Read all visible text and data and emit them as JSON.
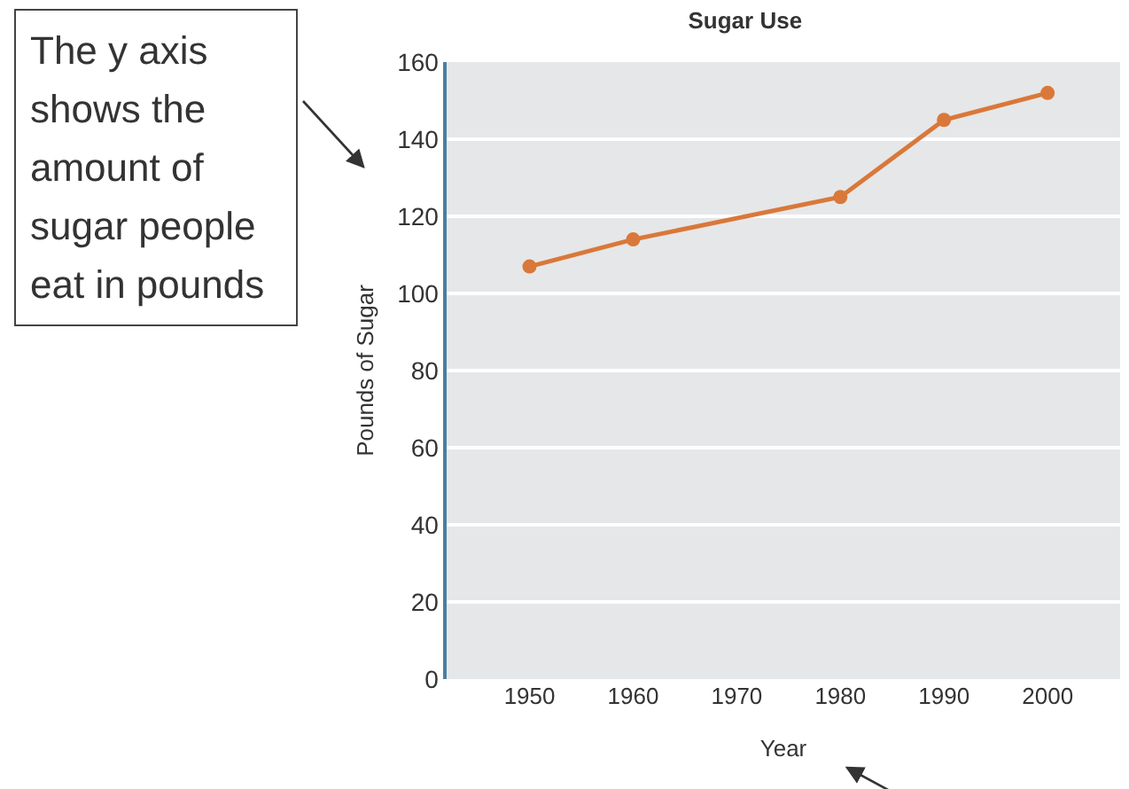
{
  "chart_data": {
    "type": "line",
    "title": "Sugar Use",
    "xlabel": "Year",
    "ylabel": "Pounds of Sugar",
    "x": [
      1950,
      1960,
      1980,
      1990,
      2000
    ],
    "series": [
      {
        "color": "#d9783a",
        "values": [
          107,
          114,
          125,
          145,
          152
        ]
      }
    ],
    "xlim": [
      1942,
      2007
    ],
    "xticks": [
      1950,
      1960,
      1970,
      1980,
      1990,
      2000
    ],
    "ylim": [
      0,
      160
    ],
    "yticks": [
      0,
      20,
      40,
      60,
      80,
      100,
      120,
      140,
      160
    ],
    "grid": "y",
    "marker": "circle",
    "line_style": "solid",
    "annotations": [
      "The y axis shows the amount of sugar people eat in pounds"
    ]
  }
}
